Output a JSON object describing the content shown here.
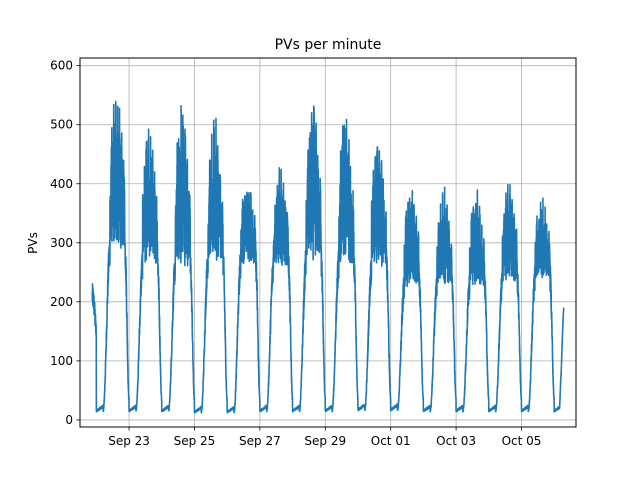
{
  "chart_data": {
    "type": "line",
    "title": "PVs per minute",
    "xlabel": "",
    "ylabel": "PVs",
    "x_start": "2018-09-21 21:00",
    "x_end": "2018-10-06 07:00",
    "xlim": [
      "2018-09-21 12:00",
      "2018-10-06 16:00"
    ],
    "ylim": [
      -12,
      613
    ],
    "x_ticks": [
      "Sep 23",
      "Sep 25",
      "Sep 27",
      "Sep 29",
      "Oct 01",
      "Oct 03",
      "Oct 05"
    ],
    "x_tick_dates": [
      "2018-09-23",
      "2018-09-25",
      "2018-09-27",
      "2018-09-29",
      "2018-10-01",
      "2018-10-03",
      "2018-10-05"
    ],
    "y_ticks": [
      0,
      100,
      200,
      300,
      400,
      500,
      600
    ],
    "grid": true,
    "color": "#1f77b4",
    "series": [
      {
        "name": "",
        "daily": [
          {
            "date": "Sep 22",
            "peak": 582,
            "floor": 290,
            "min": 15
          },
          {
            "date": "Sep 23",
            "peak": 502,
            "floor": 265,
            "min": 15
          },
          {
            "date": "Sep 24",
            "peak": 555,
            "floor": 260,
            "min": 15
          },
          {
            "date": "Sep 25",
            "peak": 520,
            "floor": 270,
            "min": 13
          },
          {
            "date": "Sep 26",
            "peak": 420,
            "floor": 265,
            "min": 13
          },
          {
            "date": "Sep 27",
            "peak": 430,
            "floor": 262,
            "min": 15
          },
          {
            "date": "Sep 28",
            "peak": 548,
            "floor": 270,
            "min": 15
          },
          {
            "date": "Sep 29",
            "peak": 532,
            "floor": 265,
            "min": 15
          },
          {
            "date": "Sep 30",
            "peak": 488,
            "floor": 258,
            "min": 17
          },
          {
            "date": "Oct 01",
            "peak": 410,
            "floor": 225,
            "min": 17
          },
          {
            "date": "Oct 02",
            "peak": 400,
            "floor": 230,
            "min": 15
          },
          {
            "date": "Oct 03",
            "peak": 398,
            "floor": 228,
            "min": 15
          },
          {
            "date": "Oct 04",
            "peak": 414,
            "floor": 235,
            "min": 15
          },
          {
            "date": "Oct 05",
            "peak": 385,
            "floor": 240,
            "min": 15
          }
        ],
        "end_value": 190
      }
    ]
  }
}
